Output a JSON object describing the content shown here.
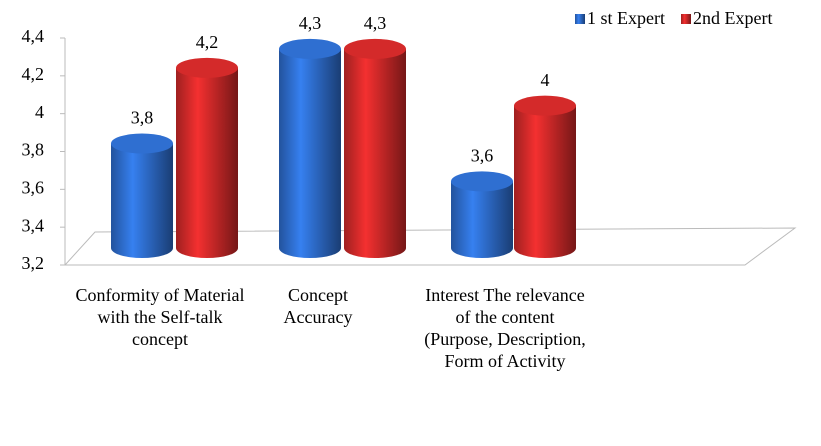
{
  "chart_data": {
    "type": "bar3d",
    "categories": [
      "Conformity of Material with the Self-talk concept",
      "Concept Accuracy",
      "Interest The relevance of the content (Purpose, Description, Form of Activity"
    ],
    "series": [
      {
        "name": "1 st Expert",
        "color": "#2f6fd1",
        "values": [
          3.8,
          4.3,
          3.6
        ],
        "value_labels": [
          "3,8",
          "4,3",
          "3,6"
        ]
      },
      {
        "name": "2nd Expert",
        "color": "#d42a2a",
        "values": [
          4.2,
          4.3,
          4
        ],
        "value_labels": [
          "4,2",
          "4,3",
          "4"
        ]
      }
    ],
    "ylim": [
      3.2,
      4.4
    ],
    "yticks": [
      {
        "value": 3.2,
        "label": "3,2"
      },
      {
        "value": 3.4,
        "label": "3,4"
      },
      {
        "value": 3.6,
        "label": "3,6"
      },
      {
        "value": 3.8,
        "label": "3,8"
      },
      4,
      {
        "value": 4.2,
        "label": "4,2"
      },
      {
        "value": 4.4,
        "label": "4,4"
      }
    ],
    "legend": "top-right"
  }
}
